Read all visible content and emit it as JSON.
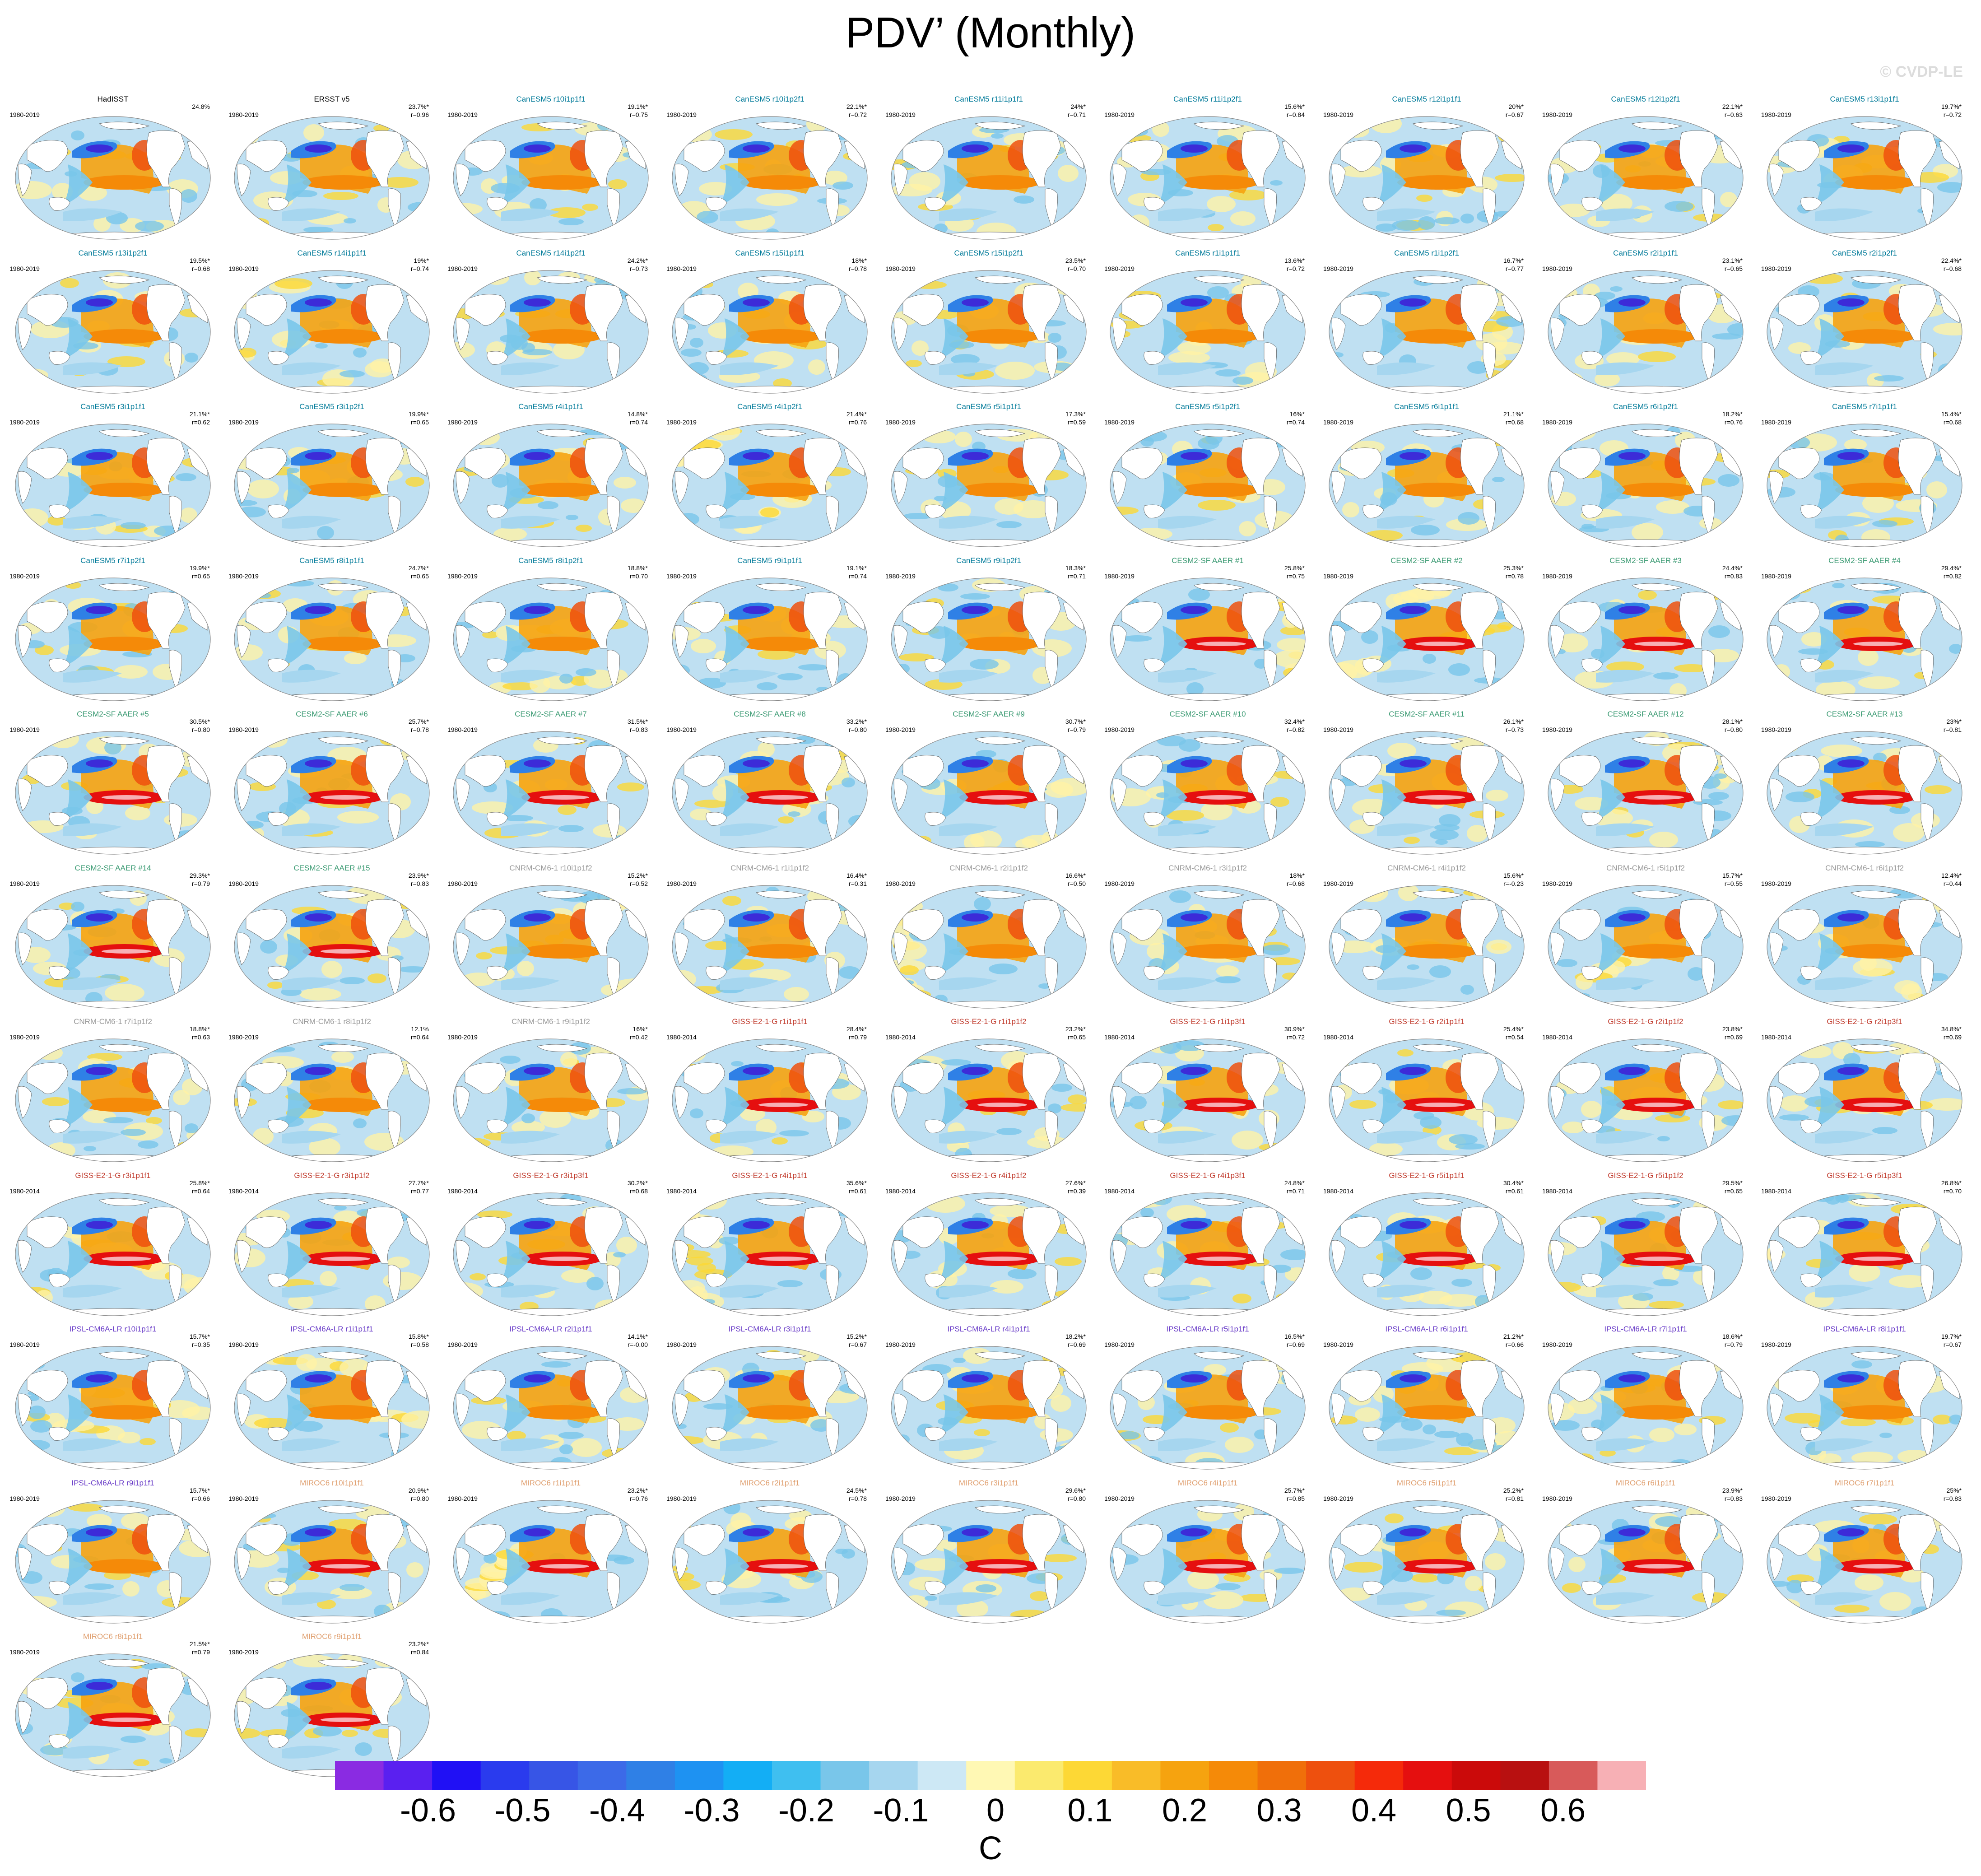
{
  "title": "PDV’ (Monthly)",
  "copyright": "© CVDP-LE",
  "colors": {
    "canesm5": "#007a99",
    "cesm2": "#3a9a72",
    "cnrm": "#999999",
    "giss": "#c0392b",
    "ipsl": "#6a3dc8",
    "miroc6": "#e0a070",
    "obs": "#000000"
  },
  "colorbar": {
    "colors": [
      "#8a2be2",
      "#5a20f0",
      "#2010f5",
      "#2a3bee",
      "#3755e6",
      "#3c6ae8",
      "#2f80e6",
      "#1e92f2",
      "#13aef5",
      "#3fbff0",
      "#79c6ea",
      "#a6d6ef",
      "#cde8f5",
      "#fff8b4",
      "#fbea6e",
      "#fdd835",
      "#f9bc28",
      "#f6a30f",
      "#f58a08",
      "#f06f0a",
      "#ee500e",
      "#f52a0a",
      "#e50f0f",
      "#cb0a0a",
      "#b81010",
      "#d85a5a",
      "#f7b0b5"
    ],
    "tick_labels": [
      "-0.6",
      "-0.5",
      "-0.4",
      "-0.3",
      "-0.2",
      "-0.1",
      "0",
      "0.1",
      "0.2",
      "0.3",
      "0.4",
      "0.5",
      "0.6"
    ],
    "units": "C"
  },
  "chart_data": {
    "type": "heatmap",
    "panels": [
      {
        "title": "HadISST",
        "period": "1980-2019",
        "pct": "24.8%",
        "r": "",
        "group": "obs"
      },
      {
        "title": "ERSST v5",
        "period": "1980-2019",
        "pct": "23.7%*",
        "r": "r=0.96",
        "group": "obs"
      },
      {
        "title": "CanESM5 r10i1p1f1",
        "period": "1980-2019",
        "pct": "19.1%*",
        "r": "r=0.75",
        "group": "canesm5"
      },
      {
        "title": "CanESM5 r10i1p2f1",
        "period": "1980-2019",
        "pct": "22.1%*",
        "r": "r=0.72",
        "group": "canesm5"
      },
      {
        "title": "CanESM5 r11i1p1f1",
        "period": "1980-2019",
        "pct": "24%*",
        "r": "r=0.71",
        "group": "canesm5"
      },
      {
        "title": "CanESM5 r11i1p2f1",
        "period": "1980-2019",
        "pct": "15.6%*",
        "r": "r=0.84",
        "group": "canesm5"
      },
      {
        "title": "CanESM5 r12i1p1f1",
        "period": "1980-2019",
        "pct": "20%*",
        "r": "r=0.67",
        "group": "canesm5"
      },
      {
        "title": "CanESM5 r12i1p2f1",
        "period": "1980-2019",
        "pct": "22.1%*",
        "r": "r=0.63",
        "group": "canesm5"
      },
      {
        "title": "CanESM5 r13i1p1f1",
        "period": "1980-2019",
        "pct": "19.7%*",
        "r": "r=0.72",
        "group": "canesm5"
      },
      {
        "title": "CanESM5 r13i1p2f1",
        "period": "1980-2019",
        "pct": "19.5%*",
        "r": "r=0.68",
        "group": "canesm5"
      },
      {
        "title": "CanESM5 r14i1p1f1",
        "period": "1980-2019",
        "pct": "19%*",
        "r": "r=0.74",
        "group": "canesm5"
      },
      {
        "title": "CanESM5 r14i1p2f1",
        "period": "1980-2019",
        "pct": "24.2%*",
        "r": "r=0.73",
        "group": "canesm5"
      },
      {
        "title": "CanESM5 r15i1p1f1",
        "period": "1980-2019",
        "pct": "18%*",
        "r": "r=0.78",
        "group": "canesm5"
      },
      {
        "title": "CanESM5 r15i1p2f1",
        "period": "1980-2019",
        "pct": "23.5%*",
        "r": "r=0.70",
        "group": "canesm5"
      },
      {
        "title": "CanESM5 r1i1p1f1",
        "period": "1980-2019",
        "pct": "13.6%*",
        "r": "r=0.72",
        "group": "canesm5"
      },
      {
        "title": "CanESM5 r1i1p2f1",
        "period": "1980-2019",
        "pct": "16.7%*",
        "r": "r=0.77",
        "group": "canesm5"
      },
      {
        "title": "CanESM5 r2i1p1f1",
        "period": "1980-2019",
        "pct": "23.1%*",
        "r": "r=0.65",
        "group": "canesm5"
      },
      {
        "title": "CanESM5 r2i1p2f1",
        "period": "1980-2019",
        "pct": "22.4%*",
        "r": "r=0.68",
        "group": "canesm5"
      },
      {
        "title": "CanESM5 r3i1p1f1",
        "period": "1980-2019",
        "pct": "21.1%*",
        "r": "r=0.62",
        "group": "canesm5"
      },
      {
        "title": "CanESM5 r3i1p2f1",
        "period": "1980-2019",
        "pct": "19.9%*",
        "r": "r=0.65",
        "group": "canesm5"
      },
      {
        "title": "CanESM5 r4i1p1f1",
        "period": "1980-2019",
        "pct": "14.8%*",
        "r": "r=0.74",
        "group": "canesm5"
      },
      {
        "title": "CanESM5 r4i1p2f1",
        "period": "1980-2019",
        "pct": "21.4%*",
        "r": "r=0.76",
        "group": "canesm5"
      },
      {
        "title": "CanESM5 r5i1p1f1",
        "period": "1980-2019",
        "pct": "17.3%*",
        "r": "r=0.59",
        "group": "canesm5"
      },
      {
        "title": "CanESM5 r5i1p2f1",
        "period": "1980-2019",
        "pct": "16%*",
        "r": "r=0.74",
        "group": "canesm5"
      },
      {
        "title": "CanESM5 r6i1p1f1",
        "period": "1980-2019",
        "pct": "21.1%*",
        "r": "r=0.68",
        "group": "canesm5"
      },
      {
        "title": "CanESM5 r6i1p2f1",
        "period": "1980-2019",
        "pct": "18.2%*",
        "r": "r=0.76",
        "group": "canesm5"
      },
      {
        "title": "CanESM5 r7i1p1f1",
        "period": "1980-2019",
        "pct": "15.4%*",
        "r": "r=0.68",
        "group": "canesm5"
      },
      {
        "title": "CanESM5 r7i1p2f1",
        "period": "1980-2019",
        "pct": "19.9%*",
        "r": "r=0.65",
        "group": "canesm5"
      },
      {
        "title": "CanESM5 r8i1p1f1",
        "period": "1980-2019",
        "pct": "24.7%*",
        "r": "r=0.65",
        "group": "canesm5"
      },
      {
        "title": "CanESM5 r8i1p2f1",
        "period": "1980-2019",
        "pct": "18.8%*",
        "r": "r=0.70",
        "group": "canesm5"
      },
      {
        "title": "CanESM5 r9i1p1f1",
        "period": "1980-2019",
        "pct": "19.1%*",
        "r": "r=0.74",
        "group": "canesm5"
      },
      {
        "title": "CanESM5 r9i1p2f1",
        "period": "1980-2019",
        "pct": "18.3%*",
        "r": "r=0.71",
        "group": "canesm5"
      },
      {
        "title": "CESM2-SF AAER #1",
        "period": "1980-2019",
        "pct": "25.8%*",
        "r": "r=0.75",
        "group": "cesm2"
      },
      {
        "title": "CESM2-SF AAER #2",
        "period": "1980-2019",
        "pct": "25.3%*",
        "r": "r=0.78",
        "group": "cesm2"
      },
      {
        "title": "CESM2-SF AAER #3",
        "period": "1980-2019",
        "pct": "24.4%*",
        "r": "r=0.83",
        "group": "cesm2"
      },
      {
        "title": "CESM2-SF AAER #4",
        "period": "1980-2019",
        "pct": "29.4%*",
        "r": "r=0.82",
        "group": "cesm2"
      },
      {
        "title": "CESM2-SF AAER #5",
        "period": "1980-2019",
        "pct": "30.5%*",
        "r": "r=0.80",
        "group": "cesm2"
      },
      {
        "title": "CESM2-SF AAER #6",
        "period": "1980-2019",
        "pct": "25.7%*",
        "r": "r=0.78",
        "group": "cesm2"
      },
      {
        "title": "CESM2-SF AAER #7",
        "period": "1980-2019",
        "pct": "31.5%*",
        "r": "r=0.83",
        "group": "cesm2"
      },
      {
        "title": "CESM2-SF AAER #8",
        "period": "1980-2019",
        "pct": "33.2%*",
        "r": "r=0.80",
        "group": "cesm2"
      },
      {
        "title": "CESM2-SF AAER #9",
        "period": "1980-2019",
        "pct": "30.7%*",
        "r": "r=0.79",
        "group": "cesm2"
      },
      {
        "title": "CESM2-SF AAER #10",
        "period": "1980-2019",
        "pct": "32.4%*",
        "r": "r=0.82",
        "group": "cesm2"
      },
      {
        "title": "CESM2-SF AAER #11",
        "period": "1980-2019",
        "pct": "26.1%*",
        "r": "r=0.73",
        "group": "cesm2"
      },
      {
        "title": "CESM2-SF AAER #12",
        "period": "1980-2019",
        "pct": "28.1%*",
        "r": "r=0.80",
        "group": "cesm2"
      },
      {
        "title": "CESM2-SF AAER #13",
        "period": "1980-2019",
        "pct": "23%*",
        "r": "r=0.81",
        "group": "cesm2"
      },
      {
        "title": "CESM2-SF AAER #14",
        "period": "1980-2019",
        "pct": "29.3%*",
        "r": "r=0.79",
        "group": "cesm2"
      },
      {
        "title": "CESM2-SF AAER #15",
        "period": "1980-2019",
        "pct": "23.9%*",
        "r": "r=0.83",
        "group": "cesm2"
      },
      {
        "title": "CNRM-CM6-1 r10i1p1f2",
        "period": "1980-2019",
        "pct": "15.2%*",
        "r": "r=0.52",
        "group": "cnrm"
      },
      {
        "title": "CNRM-CM6-1 r1i1p1f2",
        "period": "1980-2019",
        "pct": "16.4%*",
        "r": "r=0.31",
        "group": "cnrm"
      },
      {
        "title": "CNRM-CM6-1 r2i1p1f2",
        "period": "1980-2019",
        "pct": "16.6%*",
        "r": "r=0.50",
        "group": "cnrm"
      },
      {
        "title": "CNRM-CM6-1 r3i1p1f2",
        "period": "1980-2019",
        "pct": "18%*",
        "r": "r=0.68",
        "group": "cnrm"
      },
      {
        "title": "CNRM-CM6-1 r4i1p1f2",
        "period": "1980-2019",
        "pct": "15.6%*",
        "r": "r=-0.23",
        "group": "cnrm"
      },
      {
        "title": "CNRM-CM6-1 r5i1p1f2",
        "period": "1980-2019",
        "pct": "15.7%*",
        "r": "r=0.55",
        "group": "cnrm"
      },
      {
        "title": "CNRM-CM6-1 r6i1p1f2",
        "period": "1980-2019",
        "pct": "12.4%*",
        "r": "r=0.44",
        "group": "cnrm"
      },
      {
        "title": "CNRM-CM6-1 r7i1p1f2",
        "period": "1980-2019",
        "pct": "18.8%*",
        "r": "r=0.63",
        "group": "cnrm"
      },
      {
        "title": "CNRM-CM6-1 r8i1p1f2",
        "period": "1980-2019",
        "pct": "12.1%",
        "r": "r=0.64",
        "group": "cnrm"
      },
      {
        "title": "CNRM-CM6-1 r9i1p1f2",
        "period": "1980-2019",
        "pct": "16%*",
        "r": "r=0.42",
        "group": "cnrm"
      },
      {
        "title": "GISS-E2-1-G r1i1p1f1",
        "period": "1980-2014",
        "pct": "28.4%*",
        "r": "r=0.79",
        "group": "giss"
      },
      {
        "title": "GISS-E2-1-G r1i1p1f2",
        "period": "1980-2014",
        "pct": "23.2%*",
        "r": "r=0.65",
        "group": "giss"
      },
      {
        "title": "GISS-E2-1-G r1i1p3f1",
        "period": "1980-2014",
        "pct": "30.9%*",
        "r": "r=0.72",
        "group": "giss"
      },
      {
        "title": "GISS-E2-1-G r2i1p1f1",
        "period": "1980-2014",
        "pct": "25.4%*",
        "r": "r=0.54",
        "group": "giss"
      },
      {
        "title": "GISS-E2-1-G r2i1p1f2",
        "period": "1980-2014",
        "pct": "23.8%*",
        "r": "r=0.69",
        "group": "giss"
      },
      {
        "title": "GISS-E2-1-G r2i1p3f1",
        "period": "1980-2014",
        "pct": "34.8%*",
        "r": "r=0.69",
        "group": "giss"
      },
      {
        "title": "GISS-E2-1-G r3i1p1f1",
        "period": "1980-2014",
        "pct": "25.8%*",
        "r": "r=0.64",
        "group": "giss"
      },
      {
        "title": "GISS-E2-1-G r3i1p1f2",
        "period": "1980-2014",
        "pct": "27.7%*",
        "r": "r=0.77",
        "group": "giss"
      },
      {
        "title": "GISS-E2-1-G r3i1p3f1",
        "period": "1980-2014",
        "pct": "30.2%*",
        "r": "r=0.68",
        "group": "giss"
      },
      {
        "title": "GISS-E2-1-G r4i1p1f1",
        "period": "1980-2014",
        "pct": "35.6%*",
        "r": "r=0.61",
        "group": "giss"
      },
      {
        "title": "GISS-E2-1-G r4i1p1f2",
        "period": "1980-2014",
        "pct": "27.6%*",
        "r": "r=0.39",
        "group": "giss"
      },
      {
        "title": "GISS-E2-1-G r4i1p3f1",
        "period": "1980-2014",
        "pct": "24.8%*",
        "r": "r=0.71",
        "group": "giss"
      },
      {
        "title": "GISS-E2-1-G r5i1p1f1",
        "period": "1980-2014",
        "pct": "30.4%*",
        "r": "r=0.61",
        "group": "giss"
      },
      {
        "title": "GISS-E2-1-G r5i1p1f2",
        "period": "1980-2014",
        "pct": "29.5%*",
        "r": "r=0.65",
        "group": "giss"
      },
      {
        "title": "GISS-E2-1-G r5i1p3f1",
        "period": "1980-2014",
        "pct": "26.8%*",
        "r": "r=0.70",
        "group": "giss"
      },
      {
        "title": "IPSL-CM6A-LR r10i1p1f1",
        "period": "1980-2019",
        "pct": "15.7%*",
        "r": "r=0.35",
        "group": "ipsl"
      },
      {
        "title": "IPSL-CM6A-LR r1i1p1f1",
        "period": "1980-2019",
        "pct": "15.8%*",
        "r": "r=0.58",
        "group": "ipsl"
      },
      {
        "title": "IPSL-CM6A-LR r2i1p1f1",
        "period": "1980-2019",
        "pct": "14.1%*",
        "r": "r=-0.00",
        "group": "ipsl"
      },
      {
        "title": "IPSL-CM6A-LR r3i1p1f1",
        "period": "1980-2019",
        "pct": "15.2%*",
        "r": "r=0.67",
        "group": "ipsl"
      },
      {
        "title": "IPSL-CM6A-LR r4i1p1f1",
        "period": "1980-2019",
        "pct": "18.2%*",
        "r": "r=0.69",
        "group": "ipsl"
      },
      {
        "title": "IPSL-CM6A-LR r5i1p1f1",
        "period": "1980-2019",
        "pct": "16.5%*",
        "r": "r=0.69",
        "group": "ipsl"
      },
      {
        "title": "IPSL-CM6A-LR r6i1p1f1",
        "period": "1980-2019",
        "pct": "21.2%*",
        "r": "r=0.66",
        "group": "ipsl"
      },
      {
        "title": "IPSL-CM6A-LR r7i1p1f1",
        "period": "1980-2019",
        "pct": "18.6%*",
        "r": "r=0.79",
        "group": "ipsl"
      },
      {
        "title": "IPSL-CM6A-LR r8i1p1f1",
        "period": "1980-2019",
        "pct": "19.7%*",
        "r": "r=0.67",
        "group": "ipsl"
      },
      {
        "title": "IPSL-CM6A-LR r9i1p1f1",
        "period": "1980-2019",
        "pct": "15.7%*",
        "r": "r=0.66",
        "group": "ipsl"
      },
      {
        "title": "MIROC6 r10i1p1f1",
        "period": "1980-2019",
        "pct": "20.9%*",
        "r": "r=0.80",
        "group": "miroc6"
      },
      {
        "title": "MIROC6 r1i1p1f1",
        "period": "1980-2019",
        "pct": "23.2%*",
        "r": "r=0.76",
        "group": "miroc6"
      },
      {
        "title": "MIROC6 r2i1p1f1",
        "period": "1980-2019",
        "pct": "24.5%*",
        "r": "r=0.78",
        "group": "miroc6"
      },
      {
        "title": "MIROC6 r3i1p1f1",
        "period": "1980-2019",
        "pct": "29.6%*",
        "r": "r=0.80",
        "group": "miroc6"
      },
      {
        "title": "MIROC6 r4i1p1f1",
        "period": "1980-2019",
        "pct": "25.7%*",
        "r": "r=0.85",
        "group": "miroc6"
      },
      {
        "title": "MIROC6 r5i1p1f1",
        "period": "1980-2019",
        "pct": "25.2%*",
        "r": "r=0.81",
        "group": "miroc6"
      },
      {
        "title": "MIROC6 r6i1p1f1",
        "period": "1980-2019",
        "pct": "23.9%*",
        "r": "r=0.83",
        "group": "miroc6"
      },
      {
        "title": "MIROC6 r7i1p1f1",
        "period": "1980-2019",
        "pct": "25%*",
        "r": "r=0.83",
        "group": "miroc6"
      },
      {
        "title": "MIROC6 r8i1p1f1",
        "period": "1980-2019",
        "pct": "21.5%*",
        "r": "r=0.79",
        "group": "miroc6"
      },
      {
        "title": "MIROC6 r9i1p1f1",
        "period": "1980-2019",
        "pct": "23.2%*",
        "r": "r=0.84",
        "group": "miroc6"
      }
    ]
  }
}
